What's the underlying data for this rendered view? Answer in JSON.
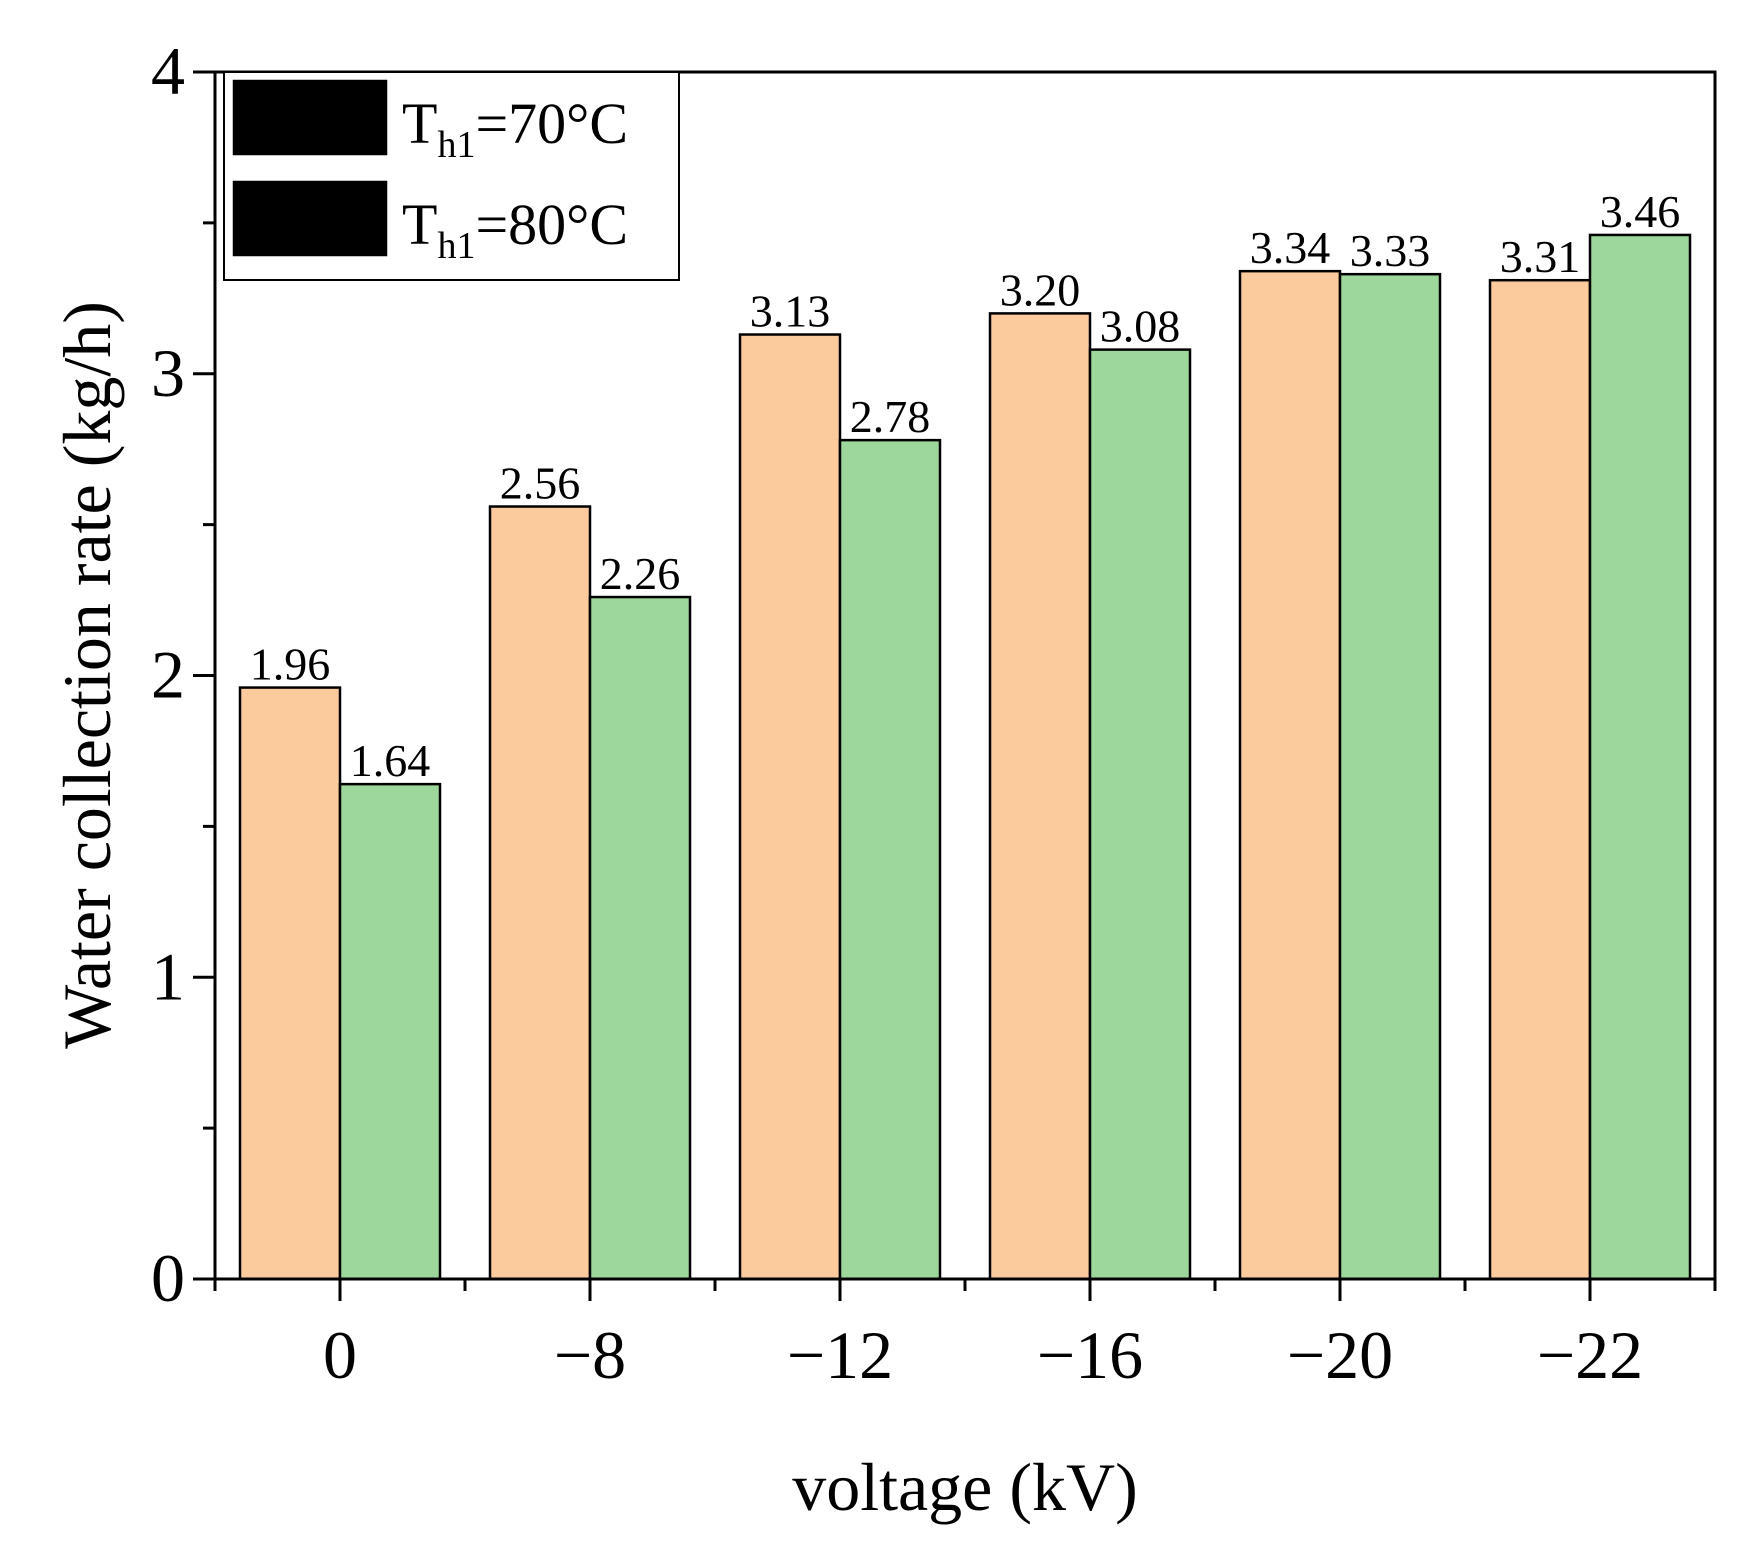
{
  "chart_data": {
    "type": "bar",
    "xlabel": "voltage (kV)",
    "ylabel": "Water collection rate (kg/h)",
    "categories": [
      "0",
      "−8",
      "−12",
      "−16",
      "−20",
      "−22"
    ],
    "ylim": [
      0,
      4
    ],
    "yticks": [
      "0",
      "1",
      "2",
      "3",
      "4"
    ],
    "legend_position": "top-left",
    "series": [
      {
        "name": "T_h1=70°C",
        "legend_main": "T",
        "legend_sub": "h1",
        "legend_rest": "=70°C",
        "color": "#FBCB9E",
        "values": [
          1.96,
          2.56,
          3.13,
          3.2,
          3.34,
          3.31
        ],
        "labels": [
          "1.96",
          "2.56",
          "3.13",
          "3.20",
          "3.34",
          "3.31"
        ]
      },
      {
        "name": "T_h1=80°C",
        "legend_main": "T",
        "legend_sub": "h1",
        "legend_rest": "=80°C",
        "color": "#9DD79B",
        "values": [
          1.64,
          2.26,
          2.78,
          3.08,
          3.33,
          3.46
        ],
        "labels": [
          "1.64",
          "2.26",
          "2.78",
          "3.08",
          "3.33",
          "3.46"
        ]
      }
    ]
  }
}
